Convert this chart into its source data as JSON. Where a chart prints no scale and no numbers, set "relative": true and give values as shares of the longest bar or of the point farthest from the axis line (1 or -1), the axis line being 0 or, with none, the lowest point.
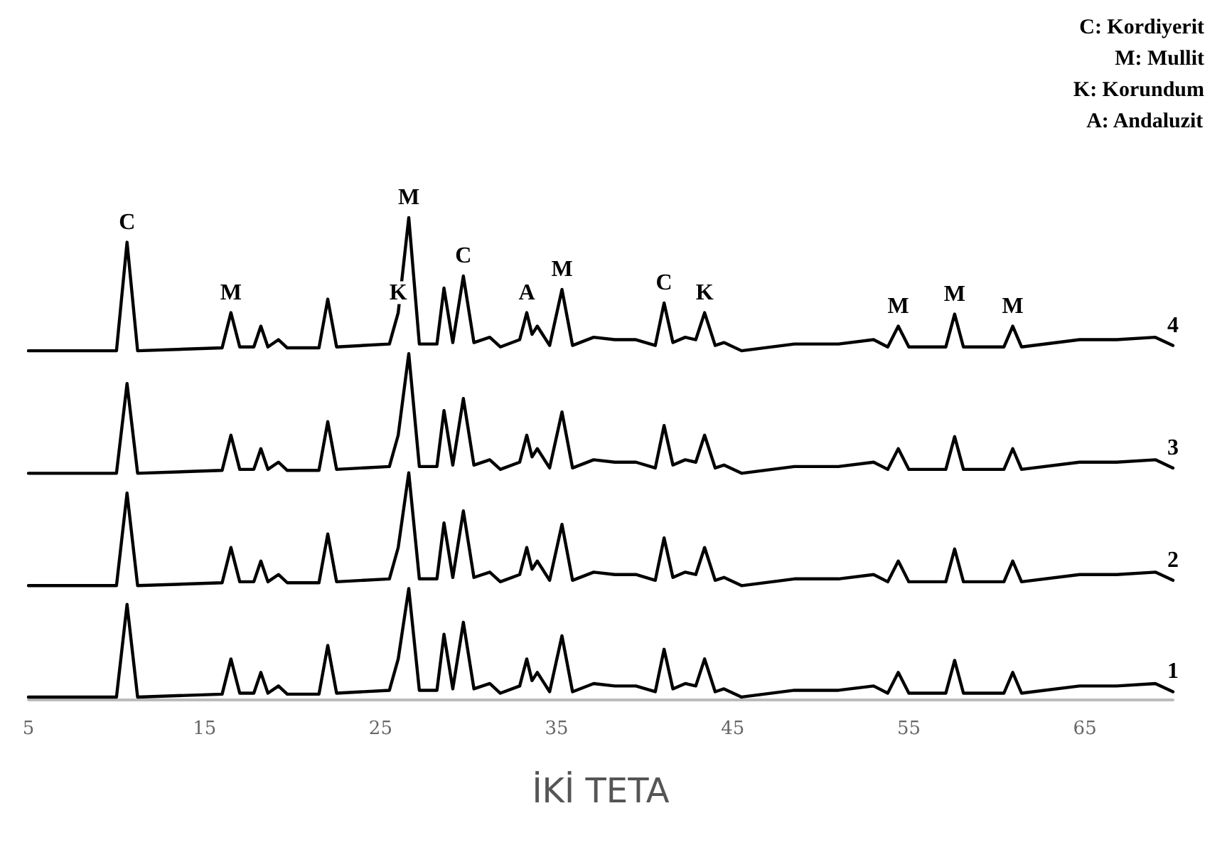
{
  "chart_data": {
    "type": "line",
    "xlabel": "İKİ TETA",
    "relative": true,
    "xlim": [
      5,
      70
    ],
    "xticks": [
      5,
      15,
      25,
      35,
      45,
      55,
      65
    ],
    "grid": false,
    "legend": false,
    "marker": "none",
    "line_style": "solid",
    "x": [
      5,
      10.0,
      10.6,
      11.2,
      16.0,
      16.5,
      17.0,
      17.8,
      18.2,
      18.6,
      19.2,
      19.7,
      21.5,
      22.0,
      22.5,
      25.5,
      26.0,
      26.6,
      27.2,
      28.2,
      28.6,
      29.1,
      29.7,
      30.3,
      31.2,
      31.8,
      32.9,
      33.3,
      33.6,
      33.9,
      34.6,
      35.3,
      35.9,
      37.1,
      38.3,
      39.5,
      40.6,
      41.1,
      41.6,
      42.3,
      42.9,
      43.4,
      44.0,
      44.5,
      45.5,
      48.5,
      50.0,
      51.0,
      53.0,
      53.8,
      54.4,
      55.0,
      57.1,
      57.6,
      58.1,
      60.4,
      60.9,
      61.4,
      64.7,
      66.8,
      69.0,
      70
    ],
    "series": [
      {
        "name": "4",
        "color": "#000000",
        "values": [
          0.724,
          0.724,
          0.949,
          0.724,
          0.73,
          0.803,
          0.732,
          0.732,
          0.775,
          0.732,
          0.747,
          0.73,
          0.73,
          0.831,
          0.732,
          0.738,
          0.803,
          1.0,
          0.738,
          0.738,
          0.854,
          0.741,
          0.879,
          0.741,
          0.752,
          0.732,
          0.747,
          0.803,
          0.758,
          0.775,
          0.735,
          0.851,
          0.735,
          0.752,
          0.747,
          0.747,
          0.735,
          0.823,
          0.741,
          0.752,
          0.747,
          0.803,
          0.735,
          0.741,
          0.724,
          0.738,
          0.738,
          0.738,
          0.747,
          0.732,
          0.775,
          0.732,
          0.732,
          0.8,
          0.732,
          0.732,
          0.775,
          0.732,
          0.747,
          0.747,
          0.752,
          0.735
        ]
      },
      {
        "name": "3",
        "color": "#000000",
        "values": [
          0.47,
          0.47,
          0.656,
          0.47,
          0.476,
          0.549,
          0.478,
          0.478,
          0.521,
          0.478,
          0.493,
          0.476,
          0.476,
          0.577,
          0.478,
          0.484,
          0.549,
          0.718,
          0.484,
          0.484,
          0.6,
          0.487,
          0.625,
          0.487,
          0.498,
          0.478,
          0.493,
          0.549,
          0.504,
          0.521,
          0.481,
          0.597,
          0.481,
          0.498,
          0.493,
          0.493,
          0.481,
          0.569,
          0.487,
          0.498,
          0.493,
          0.549,
          0.481,
          0.487,
          0.47,
          0.484,
          0.484,
          0.484,
          0.493,
          0.478,
          0.521,
          0.478,
          0.478,
          0.546,
          0.478,
          0.478,
          0.521,
          0.478,
          0.493,
          0.493,
          0.498,
          0.481
        ]
      },
      {
        "name": "2",
        "color": "#000000",
        "values": [
          0.237,
          0.237,
          0.429,
          0.237,
          0.243,
          0.316,
          0.245,
          0.245,
          0.288,
          0.245,
          0.26,
          0.243,
          0.243,
          0.344,
          0.245,
          0.251,
          0.316,
          0.471,
          0.251,
          0.251,
          0.367,
          0.254,
          0.392,
          0.254,
          0.265,
          0.245,
          0.26,
          0.316,
          0.271,
          0.288,
          0.248,
          0.364,
          0.248,
          0.265,
          0.26,
          0.26,
          0.248,
          0.336,
          0.254,
          0.265,
          0.26,
          0.316,
          0.248,
          0.254,
          0.237,
          0.251,
          0.251,
          0.251,
          0.26,
          0.245,
          0.288,
          0.245,
          0.245,
          0.313,
          0.245,
          0.245,
          0.288,
          0.245,
          0.26,
          0.26,
          0.265,
          0.248
        ]
      },
      {
        "name": "1",
        "color": "#000000",
        "values": [
          0.006,
          0.006,
          0.198,
          0.006,
          0.012,
          0.085,
          0.014,
          0.014,
          0.057,
          0.014,
          0.029,
          0.012,
          0.012,
          0.113,
          0.014,
          0.02,
          0.085,
          0.231,
          0.02,
          0.02,
          0.136,
          0.023,
          0.161,
          0.023,
          0.034,
          0.014,
          0.029,
          0.085,
          0.04,
          0.057,
          0.017,
          0.133,
          0.017,
          0.034,
          0.029,
          0.029,
          0.017,
          0.105,
          0.023,
          0.034,
          0.029,
          0.085,
          0.017,
          0.023,
          0.006,
          0.02,
          0.02,
          0.02,
          0.029,
          0.014,
          0.057,
          0.014,
          0.014,
          0.082,
          0.014,
          0.014,
          0.057,
          0.014,
          0.029,
          0.029,
          0.034,
          0.017
        ]
      }
    ],
    "annotations": [
      "C: Kordiyerit",
      "M: Mullit",
      "K: Korundum",
      "A: Andaluzit",
      {
        "text": "C",
        "x": 10.6,
        "y": 0.949
      },
      {
        "text": "M",
        "x": 16.5,
        "y": 0.803
      },
      {
        "text": "K",
        "x": 26.0,
        "y": 0.803
      },
      {
        "text": "M",
        "x": 26.6,
        "y": 1.0
      },
      {
        "text": "C",
        "x": 29.7,
        "y": 0.879
      },
      {
        "text": "A",
        "x": 33.3,
        "y": 0.803
      },
      {
        "text": "M",
        "x": 35.3,
        "y": 0.851
      },
      {
        "text": "C",
        "x": 41.1,
        "y": 0.823
      },
      {
        "text": "K",
        "x": 43.4,
        "y": 0.803
      },
      {
        "text": "M",
        "x": 54.4,
        "y": 0.775
      },
      {
        "text": "M",
        "x": 57.6,
        "y": 0.8
      },
      {
        "text": "M",
        "x": 60.9,
        "y": 0.775
      }
    ]
  }
}
